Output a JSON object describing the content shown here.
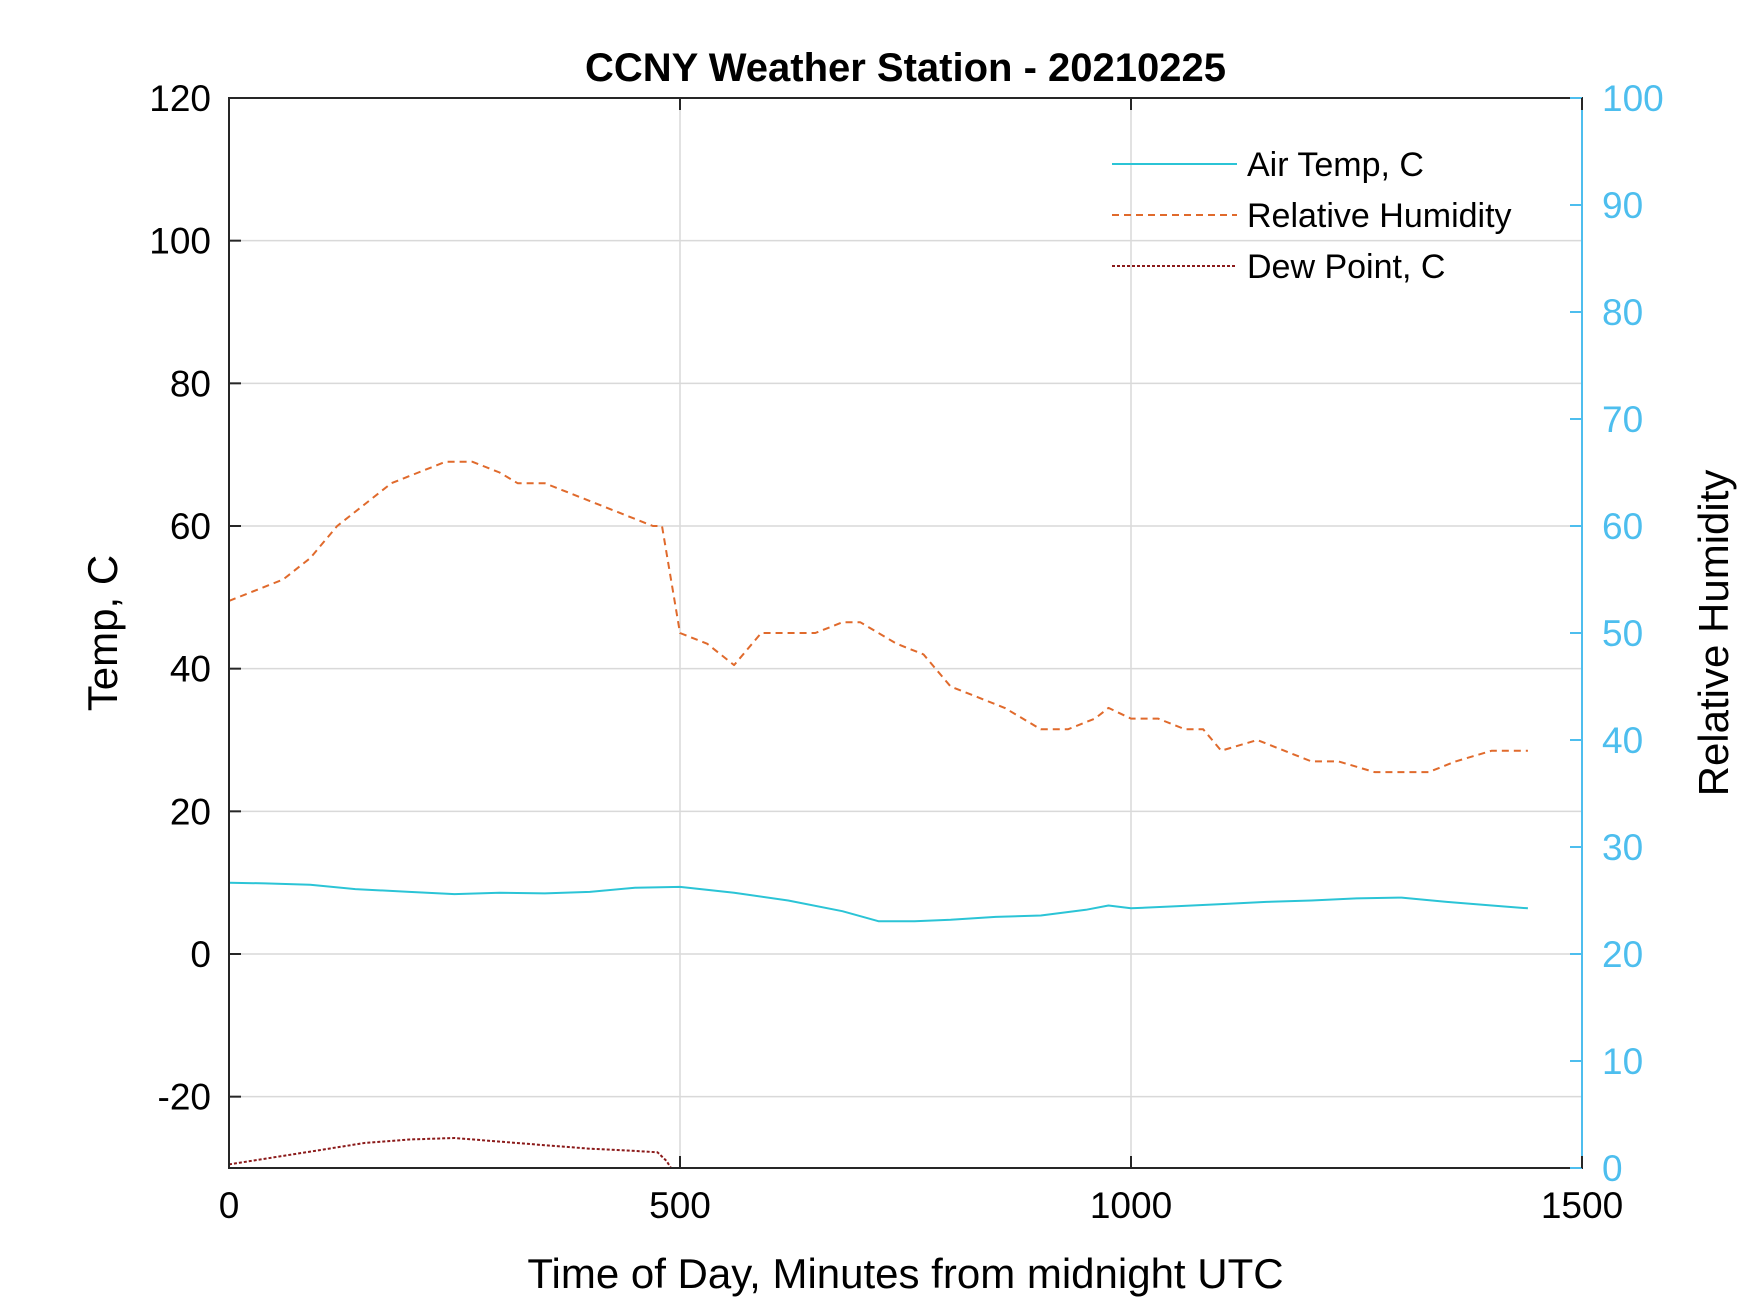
{
  "chart_data": {
    "type": "line",
    "title": "CCNY Weather Station - 20210225",
    "xlabel": "Time of Day, Minutes from midnight UTC",
    "ylabel_left": "Temp, C",
    "ylabel_right": "Relative Humidity",
    "xlim": [
      0,
      1500
    ],
    "ylim_left": [
      -30,
      120
    ],
    "ylim_right": [
      0,
      100
    ],
    "x_ticks": [
      0,
      500,
      1000,
      1500
    ],
    "y_ticks_left": [
      -20,
      0,
      20,
      40,
      60,
      80,
      100,
      120
    ],
    "y_ticks_right": [
      0,
      10,
      20,
      30,
      40,
      50,
      60,
      70,
      80,
      90,
      100
    ],
    "grid": true,
    "legend_position": "top-right",
    "colors": {
      "right_axis": "#4DBEEE",
      "grid": "#d9d9d9"
    },
    "series": [
      {
        "name": "Air Temp, C",
        "axis": "left",
        "style": "solid",
        "color": "#2bc4d6",
        "x": [
          0,
          40,
          90,
          140,
          200,
          250,
          300,
          350,
          400,
          450,
          500,
          560,
          620,
          680,
          720,
          760,
          800,
          850,
          900,
          950,
          975,
          1000,
          1050,
          1100,
          1150,
          1200,
          1250,
          1300,
          1350,
          1400,
          1440
        ],
        "y": [
          10.0,
          9.9,
          9.7,
          9.1,
          8.7,
          8.4,
          8.6,
          8.5,
          8.7,
          9.3,
          9.4,
          8.6,
          7.5,
          6.0,
          4.6,
          4.6,
          4.8,
          5.2,
          5.4,
          6.2,
          6.8,
          6.4,
          6.7,
          7.0,
          7.3,
          7.5,
          7.8,
          7.9,
          7.3,
          6.8,
          6.4
        ]
      },
      {
        "name": "Relative Humidity",
        "axis": "right",
        "style": "dashed",
        "color": "#E06A2C",
        "x": [
          0,
          30,
          60,
          90,
          120,
          150,
          180,
          210,
          240,
          270,
          300,
          320,
          350,
          380,
          410,
          440,
          470,
          480,
          490,
          500,
          530,
          560,
          590,
          620,
          650,
          680,
          700,
          740,
          770,
          800,
          830,
          860,
          900,
          930,
          960,
          975,
          1000,
          1030,
          1060,
          1080,
          1100,
          1140,
          1170,
          1200,
          1230,
          1270,
          1300,
          1330,
          1360,
          1400,
          1440
        ],
        "y": [
          53,
          54,
          55,
          57,
          60,
          62,
          64,
          65,
          66,
          66,
          65,
          64,
          64,
          63,
          62,
          61,
          60,
          60,
          55,
          50,
          49,
          47,
          50,
          50,
          50,
          51,
          51,
          49,
          48,
          45,
          44,
          43,
          41,
          41,
          42,
          43,
          42,
          42,
          41,
          41,
          39,
          40,
          39,
          38,
          38,
          37,
          37,
          37,
          38,
          39,
          39
        ]
      },
      {
        "name": "Dew Point, C",
        "axis": "left",
        "style": "dotted",
        "color": "#8B1A1A",
        "x": [
          0,
          50,
          100,
          150,
          200,
          250,
          300,
          350,
          400,
          450,
          475,
          485,
          490
        ],
        "y": [
          -29.5,
          -28.5,
          -27.5,
          -26.5,
          -26.0,
          -25.8,
          -26.3,
          -26.8,
          -27.3,
          -27.6,
          -27.8,
          -29.0,
          -30.0
        ]
      }
    ]
  }
}
